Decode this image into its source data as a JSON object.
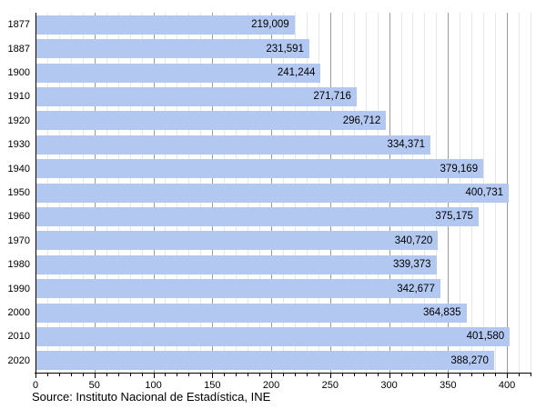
{
  "chart_data": {
    "type": "bar",
    "orientation": "horizontal",
    "title": "",
    "xlabel": "",
    "ylabel": "",
    "legend": "none",
    "grid": "vertical minor every 10, major every 50",
    "categories": [
      "1877",
      "1887",
      "1900",
      "1910",
      "1920",
      "1930",
      "1940",
      "1950",
      "1960",
      "1970",
      "1980",
      "1990",
      "2000",
      "2010",
      "2020"
    ],
    "values": [
      219009,
      231591,
      241244,
      271716,
      296712,
      334371,
      379169,
      400731,
      375175,
      340720,
      339373,
      342677,
      364835,
      401580,
      388270
    ],
    "value_labels": [
      "219,009",
      "231,591",
      "241,244",
      "271,716",
      "296,712",
      "334,371",
      "379,169",
      "400,731",
      "375,175",
      "340,720",
      "339,373",
      "342,677",
      "364,835",
      "401,580",
      "388,270"
    ],
    "x_axis": {
      "min": 0,
      "max": 420,
      "unit_scale": "thousands",
      "major_tick_step": 50,
      "minor_tick_step": 10,
      "tick_labels": [
        "0",
        "50",
        "100",
        "150",
        "200",
        "250",
        "300",
        "350",
        "400"
      ]
    },
    "colors": {
      "bar_fill": "#b3c8f1",
      "grid_minor": "#e7e7e7",
      "grid_major": "#9a9a9a",
      "axis": "#000000",
      "text": "#000000"
    }
  },
  "source_note": "Source: Instituto Nacional de Estadística, INE"
}
